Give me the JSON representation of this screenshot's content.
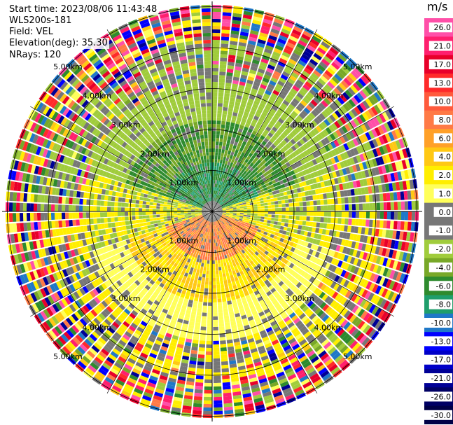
{
  "info": {
    "start_time": "Start time: 2023/08/06 11:43:48",
    "station": "WLS200s-181",
    "field": "Field: VEL",
    "elevation": "Elevation(deg): 35.30",
    "nrays": "NRays: 120"
  },
  "colorbar": {
    "unit": "m/s",
    "ticks": [
      "26.0",
      "21.0",
      "17.0",
      "13.0",
      "10.0",
      "8.0",
      "6.0",
      "4.0",
      "2.0",
      "1.0",
      "0.0",
      "-1.0",
      "-2.0",
      "-4.0",
      "-6.0",
      "-8.0",
      "-10.0",
      "-13.0",
      "-17.0",
      "-21.0",
      "-26.0",
      "-30.0"
    ],
    "colors": [
      "#ff4fa8",
      "#ff1f6e",
      "#e8002a",
      "#ff2a2a",
      "#ff5a3c",
      "#ff7a46",
      "#ffa028",
      "#ffc814",
      "#ffee00",
      "#ffff5a",
      "#777777",
      "#777777",
      "#a0cc3c",
      "#78a828",
      "#2e8b2e",
      "#1f9e6c",
      "#1f78c8",
      "#0000ff",
      "#0000c8",
      "#000096",
      "#000064",
      "#000046"
    ]
  },
  "chart_data": {
    "type": "ppi_velocity",
    "field": "VEL",
    "unit": "m/s",
    "nrays": 120,
    "elevation_deg": 35.3,
    "range_rings_km": [
      1.0,
      2.0,
      3.0,
      4.0,
      5.0
    ],
    "ring_labels": [
      "1.00km",
      "2.00km",
      "3.00km",
      "4.00km",
      "5.00km"
    ],
    "vmin": -30.0,
    "vmax": 26.0,
    "pattern": {
      "near_field_north": "negative (green)",
      "near_field_south": "positive (orange/yellow)",
      "far_field": "noisy/clutter"
    }
  }
}
